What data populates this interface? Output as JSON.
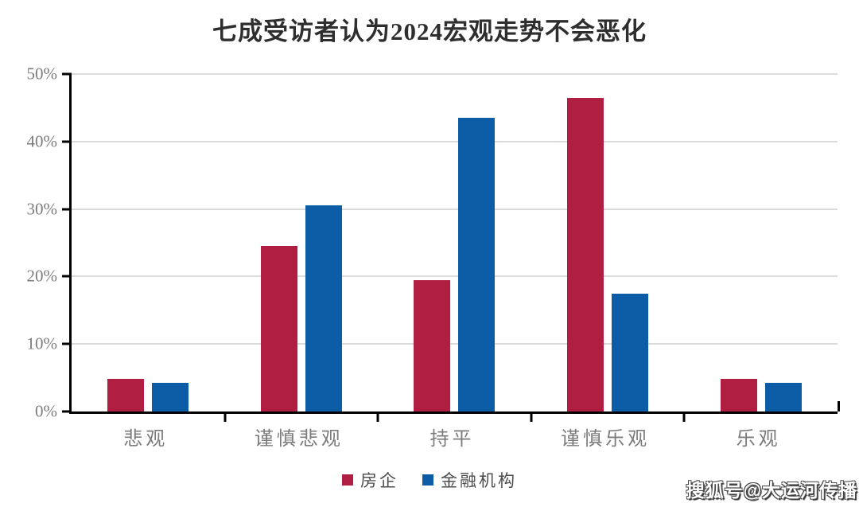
{
  "title": "七成受访者认为2024宏观走势不会恶化",
  "watermark": {
    "text": "搜狐号@大运河传播"
  },
  "chart_data": {
    "type": "bar",
    "title": "七成受访者认为2024宏观走势不会恶化",
    "categories": [
      "悲观",
      "谨慎悲观",
      "持平",
      "谨慎乐观",
      "乐观"
    ],
    "series": [
      {
        "name": "房企",
        "color": "#B01E41",
        "values": [
          4.8,
          24.5,
          19.5,
          46.5,
          4.8
        ]
      },
      {
        "name": "金融机构",
        "color": "#0D5CA6",
        "values": [
          4.3,
          30.5,
          43.5,
          17.5,
          4.3
        ]
      }
    ],
    "xlabel": "",
    "ylabel": "",
    "ylim": [
      0,
      50
    ],
    "y_ticks": [
      "0%",
      "10%",
      "20%",
      "30%",
      "40%",
      "50%"
    ],
    "grid": "horizontal",
    "legend_position": "bottom",
    "colors": {
      "gridline": "#DADADA",
      "axis": "#000000",
      "tick_label": "#7C7C7C",
      "category_label": "#7C7C7C",
      "title": "#2E2E2E",
      "legend_text": "#4D4D4D"
    }
  }
}
